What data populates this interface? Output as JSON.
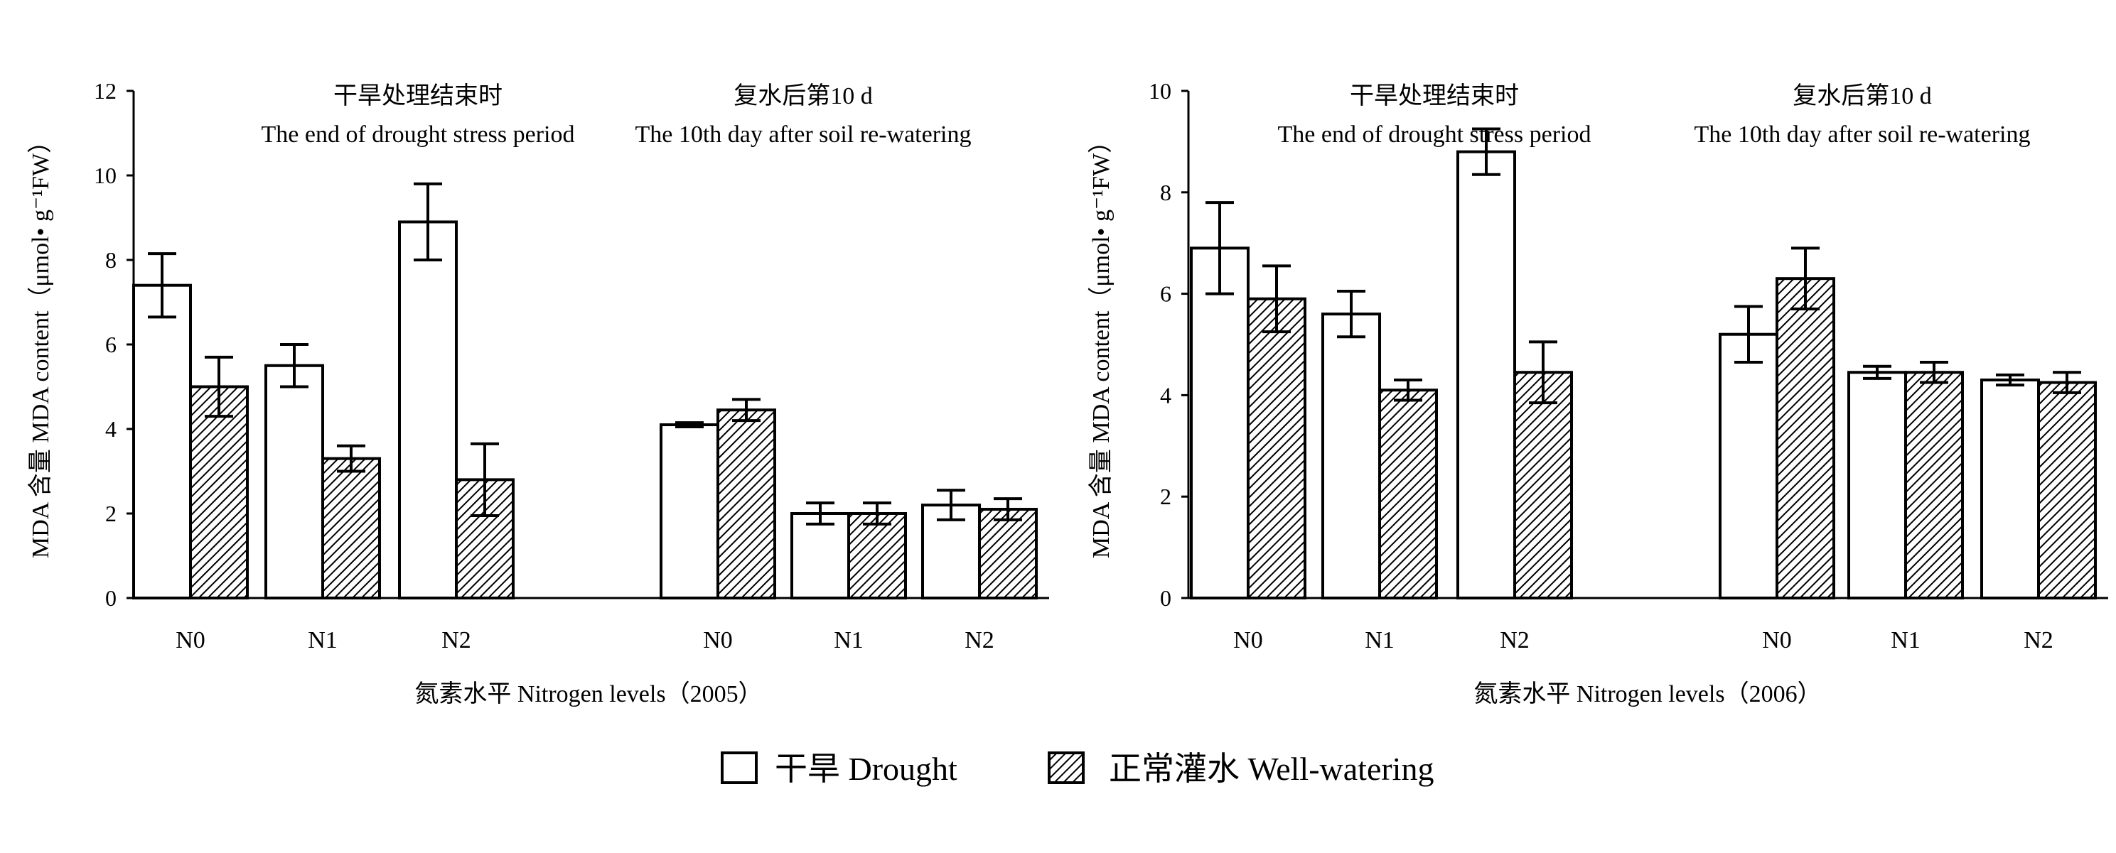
{
  "panels": [
    {
      "ylabel": "MDA 含量 MDA content（μmol• g⁻¹FW）",
      "xlabel": "氮素水平 Nitrogen levels（2005）",
      "ylim": [
        0,
        12
      ],
      "yticks": [
        "0",
        "2",
        "4",
        "6",
        "8",
        "10",
        "12"
      ],
      "periods": [
        {
          "zh": "干旱处理结束时",
          "en": "The end of drought stress period"
        },
        {
          "zh": "复水后第10 d",
          "en": "The 10th  day  after soil re-watering"
        }
      ],
      "categories": [
        "N0",
        "N1",
        "N2",
        "N0",
        "N1",
        "N2"
      ]
    },
    {
      "ylabel": "MDA 含量 MDA content（μmol• g⁻¹FW）",
      "xlabel": "氮素水平 Nitrogen levels（2006）",
      "ylim": [
        0,
        10
      ],
      "yticks": [
        "0",
        "2",
        "4",
        "6",
        "8",
        "10"
      ],
      "periods": [
        {
          "zh": "干旱处理结束时",
          "en": "The end of drought stress period"
        },
        {
          "zh": "复水后第10 d",
          "en": "The 10th  day  after soil re-watering"
        }
      ],
      "categories": [
        "N0",
        "N1",
        "N2",
        "N0",
        "N1",
        "N2"
      ]
    }
  ],
  "legend": {
    "drought": "干旱  Drought",
    "well": "正常灌水  Well-watering"
  },
  "chart_data": [
    {
      "type": "bar",
      "categories": [
        "N0",
        "N1",
        "N2",
        "N0",
        "N1",
        "N2"
      ],
      "groups": [
        "The end of drought stress period",
        "The end of drought stress period",
        "The end of drought stress period",
        "The 10th day after soil re-watering",
        "The 10th day after soil re-watering",
        "The 10th day after soil re-watering"
      ],
      "series": [
        {
          "name": "干旱 Drought",
          "values": [
            7.4,
            5.5,
            8.9,
            4.1,
            2.0,
            2.2
          ],
          "errors": [
            0.75,
            0.5,
            0.9,
            0.05,
            0.25,
            0.35
          ]
        },
        {
          "name": "正常灌水 Well-watering",
          "values": [
            5.0,
            3.3,
            2.8,
            4.45,
            2.0,
            2.1
          ],
          "errors": [
            0.7,
            0.3,
            0.85,
            0.25,
            0.25,
            0.25
          ]
        }
      ],
      "xlabel": "氮素水平 Nitrogen levels（2005）",
      "ylabel": "MDA 含量 MDA content（μmol• g⁻¹FW）",
      "ylim": [
        0,
        12
      ],
      "grid": false,
      "legend": "bottom"
    },
    {
      "type": "bar",
      "categories": [
        "N0",
        "N1",
        "N2",
        "N0",
        "N1",
        "N2"
      ],
      "groups": [
        "The end of drought stress period",
        "The end of drought stress period",
        "The end of drought stress period",
        "The 10th day after soil re-watering",
        "The 10th day after soil re-watering",
        "The 10th day after soil re-watering"
      ],
      "series": [
        {
          "name": "干旱 Drought",
          "values": [
            6.9,
            5.6,
            8.8,
            5.2,
            4.45,
            4.3
          ],
          "errors": [
            0.9,
            0.45,
            0.45,
            0.55,
            0.12,
            0.1
          ]
        },
        {
          "name": "正常灌水 Well-watering",
          "values": [
            5.9,
            4.1,
            4.45,
            6.3,
            4.45,
            4.25
          ],
          "errors": [
            0.65,
            0.2,
            0.6,
            0.6,
            0.2,
            0.2
          ]
        }
      ],
      "xlabel": "氮素水平 Nitrogen levels（2006）",
      "ylabel": "MDA 含量 MDA content（μmol• g⁻¹FW）",
      "ylim": [
        0,
        10
      ],
      "grid": false,
      "legend": "bottom"
    }
  ]
}
